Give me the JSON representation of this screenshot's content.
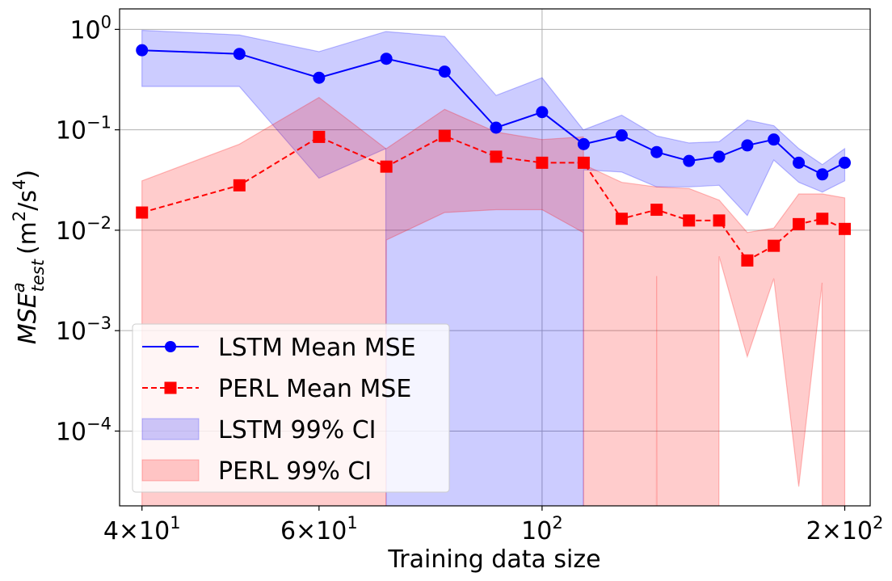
{
  "chart_data": {
    "type": "line",
    "xlabel": "Training data size",
    "ylabel": "MSE_test^a (m^2/s^4)",
    "xscale": "log",
    "yscale": "log",
    "xlim": [
      38,
      212
    ],
    "ylim": [
      1.8e-05,
      1.6
    ],
    "grid": true,
    "legend_position": "lower-left",
    "x_ticks": [
      {
        "value": 40,
        "label": "4×10¹"
      },
      {
        "value": 60,
        "label": "6×10¹"
      },
      {
        "value": 100,
        "label": "10²"
      },
      {
        "value": 200,
        "label": "2×10²"
      }
    ],
    "y_ticks": [
      {
        "value": 0.0001,
        "label": "10⁻⁴"
      },
      {
        "value": 0.001,
        "label": "10⁻³"
      },
      {
        "value": 0.01,
        "label": "10⁻²"
      },
      {
        "value": 0.1,
        "label": "10⁻¹"
      },
      {
        "value": 1,
        "label": "10⁰"
      }
    ],
    "x": [
      40,
      50,
      60,
      70,
      80,
      90,
      100,
      110,
      120,
      130,
      140,
      150,
      160,
      170,
      180,
      190,
      200
    ],
    "series": [
      {
        "name": "LSTM Mean MSE",
        "color": "#0000ff",
        "marker": "circle",
        "linestyle": "solid",
        "values": [
          0.62,
          0.57,
          0.33,
          0.51,
          0.38,
          0.105,
          0.15,
          0.072,
          0.088,
          0.06,
          0.049,
          0.054,
          0.07,
          0.08,
          0.047,
          0.036,
          0.047
        ]
      },
      {
        "name": "PERL Mean MSE",
        "color": "#ff0000",
        "marker": "square",
        "linestyle": "dashed",
        "values": [
          0.015,
          0.028,
          0.085,
          0.043,
          0.087,
          0.054,
          0.047,
          0.047,
          0.013,
          0.016,
          0.0125,
          0.0125,
          0.005,
          0.007,
          0.0115,
          0.013,
          0.0103
        ]
      }
    ],
    "bands": [
      {
        "name": "LSTM 99% CI",
        "color": "#0000ff",
        "opacity": 0.2,
        "points": [
          {
            "x": 40,
            "low": 0.27,
            "high": 0.98
          },
          {
            "x": 50,
            "low": 0.27,
            "high": 0.88
          },
          {
            "x": 60,
            "low": 0.033,
            "high": 0.6
          },
          {
            "x": 69.9,
            "low": 0.065,
            "high": 0.95
          },
          {
            "x": 70,
            "low": 1e-06,
            "high": 0.95
          },
          {
            "x": 80,
            "low": 1e-06,
            "high": 0.85
          },
          {
            "x": 90,
            "low": 1e-06,
            "high": 0.22
          },
          {
            "x": 100,
            "low": 1e-06,
            "high": 0.33
          },
          {
            "x": 109.9,
            "low": 1e-06,
            "high": 0.1
          },
          {
            "x": 110,
            "low": 0.04,
            "high": 0.1
          },
          {
            "x": 120,
            "low": 0.038,
            "high": 0.14
          },
          {
            "x": 130,
            "low": 0.027,
            "high": 0.087
          },
          {
            "x": 140,
            "low": 0.027,
            "high": 0.074
          },
          {
            "x": 150,
            "low": 0.028,
            "high": 0.076
          },
          {
            "x": 160,
            "low": 0.014,
            "high": 0.125
          },
          {
            "x": 170,
            "low": 0.05,
            "high": 0.11
          },
          {
            "x": 180,
            "low": 0.03,
            "high": 0.065
          },
          {
            "x": 190,
            "low": 0.024,
            "high": 0.045
          },
          {
            "x": 200,
            "low": 0.031,
            "high": 0.065
          }
        ]
      },
      {
        "name": "PERL 99% CI",
        "color": "#ff0000",
        "opacity": 0.2,
        "points": [
          {
            "x": 40,
            "low": 1e-06,
            "high": 0.031
          },
          {
            "x": 50,
            "low": 1e-06,
            "high": 0.072
          },
          {
            "x": 60,
            "low": 1e-06,
            "high": 0.21
          },
          {
            "x": 69.9,
            "low": 1e-06,
            "high": 0.065
          },
          {
            "x": 70,
            "low": 0.008,
            "high": 0.065
          },
          {
            "x": 80,
            "low": 0.015,
            "high": 0.16
          },
          {
            "x": 90,
            "low": 0.016,
            "high": 0.095
          },
          {
            "x": 100,
            "low": 0.016,
            "high": 0.08
          },
          {
            "x": 109.9,
            "low": 0.0095,
            "high": 0.085
          },
          {
            "x": 110,
            "low": 1e-06,
            "high": 0.045
          },
          {
            "x": 120,
            "low": 1e-06,
            "high": 0.03
          },
          {
            "x": 129.9,
            "low": 1e-06,
            "high": 0.027
          },
          {
            "x": 130,
            "low": 0.0035,
            "high": 0.027
          },
          {
            "x": 130.1,
            "low": 1e-06,
            "high": 0.027
          },
          {
            "x": 140,
            "low": 1e-06,
            "high": 0.026
          },
          {
            "x": 149.9,
            "low": 1e-06,
            "high": 0.02
          },
          {
            "x": 150,
            "low": 0.0055,
            "high": 0.02
          },
          {
            "x": 160,
            "low": 0.00055,
            "high": 0.0095
          },
          {
            "x": 170,
            "low": 0.0033,
            "high": 0.0105
          },
          {
            "x": 180,
            "low": 2.8e-05,
            "high": 0.023
          },
          {
            "x": 189.9,
            "low": 0.003,
            "high": 0.023
          },
          {
            "x": 190,
            "low": 1e-06,
            "high": 0.023
          },
          {
            "x": 200,
            "low": 1e-06,
            "high": 0.021
          }
        ]
      }
    ]
  }
}
